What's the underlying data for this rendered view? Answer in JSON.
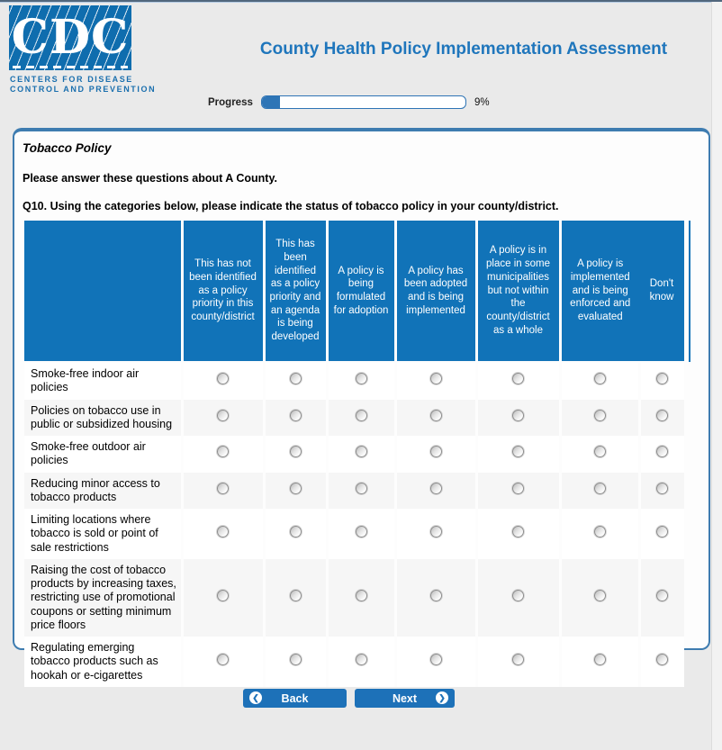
{
  "header": {
    "logo": {
      "acronym": "CDC",
      "line1": "CENTERS FOR DISEASE",
      "line2": "CONTROL AND PREVENTION"
    },
    "title": "County Health Policy Implementation Assessment"
  },
  "progress": {
    "label": "Progress",
    "percent": 9,
    "percent_label": "9%"
  },
  "panel": {
    "section_title": "Tobacco Policy",
    "intro": "Please answer these questions about A County.",
    "question_number": "Q10.",
    "question_text": " Using the categories below, please indicate the status of tobacco policy in your county/district."
  },
  "matrix": {
    "columns": [
      "This has not been identified as a policy priority in this county/district",
      "This has been identified as a policy priority and an agenda is being developed",
      "A policy is being formulated for adoption",
      "A policy has been adopted and is being implemented",
      "A policy is in place in some municipalities but not within the county/district as a whole",
      "A policy is implemented and is being enforced and evaluated",
      "Don't know"
    ],
    "rows": [
      "Smoke-free indoor air policies",
      "Policies on tobacco use in public or subsidized housing",
      "Smoke-free outdoor air policies",
      "Reducing minor access to tobacco products",
      "Limiting locations where tobacco is sold or point of sale restrictions",
      "Raising the cost of tobacco products by increasing taxes, restricting use of promotional coupons or setting minimum price floors",
      "Regulating emerging tobacco products such as hookah or e-cigarettes"
    ],
    "selected": null
  },
  "nav": {
    "back_label": "Back",
    "next_label": "Next"
  },
  "colors": {
    "table_header_blue": "#1173b8",
    "title_blue": "#1f76bc",
    "button_blue": "#1d71b8",
    "panel_border_blue": "#3e7cb0",
    "logo_blue": "#0f6dae",
    "progress_fill_blue": "#2e75b6",
    "page_background": "#eaeaea",
    "alt_row_gray": "#f6f6f6"
  }
}
